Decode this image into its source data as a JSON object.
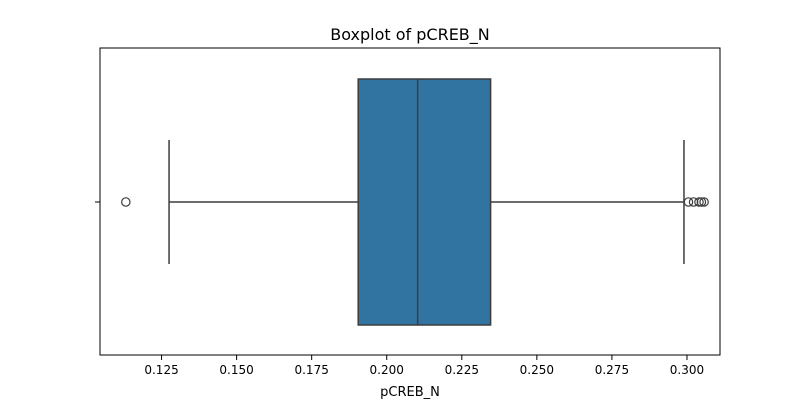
{
  "chart_data": {
    "type": "boxplot",
    "title": "Boxplot of pCREB_N",
    "xlabel": "pCREB_N",
    "ylabel": "",
    "orientation": "horizontal",
    "xlim": [
      0.1045,
      0.311
    ],
    "ticks": [
      0.125,
      0.15,
      0.175,
      0.2,
      0.225,
      0.25,
      0.275,
      0.3
    ],
    "tick_labels": [
      "0.125",
      "0.150",
      "0.175",
      "0.200",
      "0.225",
      "0.250",
      "0.275",
      "0.300"
    ],
    "box": {
      "whisker_low": 0.1275,
      "q1": 0.1905,
      "median": 0.2103,
      "q3": 0.2346,
      "whisker_high": 0.299
    },
    "outliers": [
      0.1131,
      0.3005,
      0.3022,
      0.304,
      0.3048,
      0.3057
    ],
    "colors": {
      "box_fill": "#3274a1",
      "line": "#3d3d3d",
      "axes": "#000000"
    },
    "grid": false,
    "legend": "none"
  }
}
